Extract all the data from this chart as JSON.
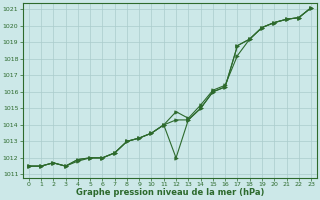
{
  "xlabel": "Graphe pression niveau de la mer (hPa)",
  "x": [
    0,
    1,
    2,
    3,
    4,
    5,
    6,
    7,
    8,
    9,
    10,
    11,
    12,
    13,
    14,
    15,
    16,
    17,
    18,
    19,
    20,
    21,
    22,
    23
  ],
  "line1": [
    1011.5,
    1011.5,
    1011.7,
    1011.5,
    1011.8,
    1012.0,
    1012.0,
    1012.3,
    1013.0,
    1013.2,
    1013.5,
    1014.0,
    1014.8,
    1014.4,
    1015.2,
    1016.1,
    1016.4,
    1018.2,
    1019.2,
    1019.9,
    1020.2,
    1020.4,
    1020.5,
    1021.1
  ],
  "line2": [
    1011.5,
    1011.5,
    1011.7,
    1011.5,
    1011.9,
    1012.0,
    1012.0,
    1012.3,
    1013.0,
    1013.2,
    1013.5,
    1014.0,
    1012.0,
    1014.3,
    1015.0,
    1016.0,
    1016.3,
    1018.8,
    1019.2,
    1019.9,
    1020.2,
    1020.4,
    1020.5,
    1021.1
  ],
  "line3": [
    1011.5,
    1011.5,
    1011.7,
    1011.5,
    1011.9,
    1012.0,
    1012.0,
    1012.3,
    1013.0,
    1013.2,
    1013.5,
    1014.0,
    1014.3,
    1014.3,
    1015.0,
    1016.0,
    1016.3,
    1018.8,
    1019.2,
    1019.9,
    1020.2,
    1020.4,
    1020.5,
    1021.1
  ],
  "line_color": "#2d6a2d",
  "bg_color": "#cce8e8",
  "grid_color": "#aacccc",
  "ylim": [
    1010.8,
    1021.4
  ],
  "yticks": [
    1011,
    1012,
    1013,
    1014,
    1015,
    1016,
    1017,
    1018,
    1019,
    1020,
    1021
  ],
  "xticks": [
    0,
    1,
    2,
    3,
    4,
    5,
    6,
    7,
    8,
    9,
    10,
    11,
    12,
    13,
    14,
    15,
    16,
    17,
    18,
    19,
    20,
    21,
    22,
    23
  ]
}
